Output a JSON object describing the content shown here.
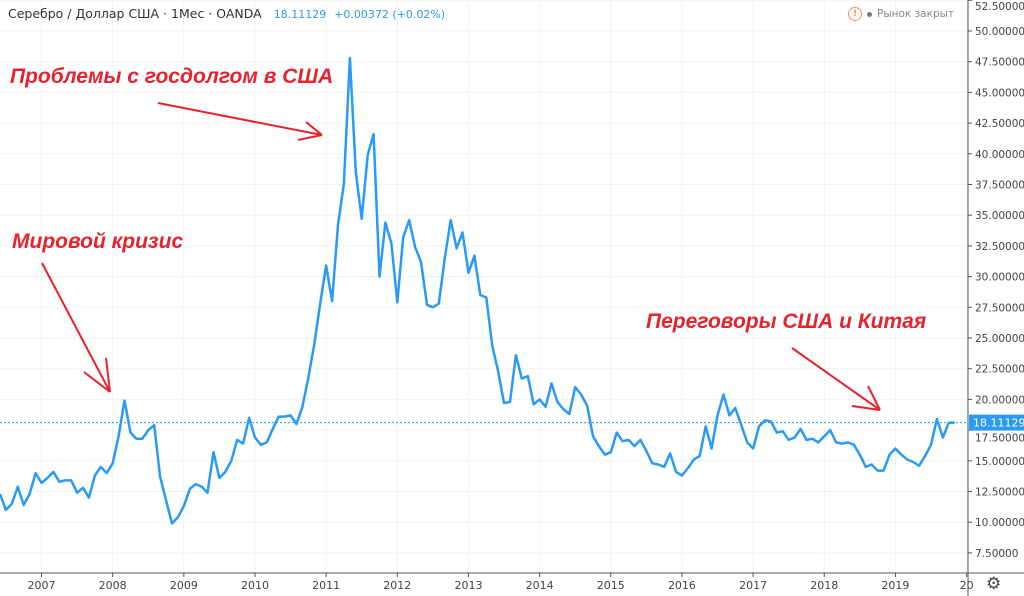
{
  "header": {
    "symbol": "Серебро / Доллар США · 1Мес · OANDA",
    "last": "18.11129",
    "change": "+0.00372 (+0.02%)",
    "market_status": "Рынок закрыт"
  },
  "colors": {
    "line": "#2b9af3",
    "annotation": "#e5232d",
    "grid": "#eef3f8"
  },
  "chart_data": {
    "type": "line",
    "title": "Серебро / Доллар США · 1Мес · OANDA",
    "x_start": "2006-06",
    "x_step": "1 month",
    "xlabel": "",
    "ylabel": "",
    "ylim": [
      6,
      52.5
    ],
    "x_ticks": [
      "2007",
      "2008",
      "2009",
      "2010",
      "2011",
      "2012",
      "2013",
      "2014",
      "2015",
      "2016",
      "2017",
      "2018",
      "2019",
      "20"
    ],
    "y_ticks": [
      "7.50000",
      "10.00000",
      "12.50000",
      "15.00000",
      "17.50000",
      "20.00000",
      "22.50000",
      "25.00000",
      "27.50000",
      "30.00000",
      "32.50000",
      "35.00000",
      "37.50000",
      "40.00000",
      "42.50000",
      "45.00000",
      "47.50000",
      "50.00000",
      "52.50000"
    ],
    "last_price_label": "18.11129",
    "values": [
      12.3,
      11.0,
      11.5,
      12.9,
      11.4,
      12.3,
      14.0,
      13.2,
      13.6,
      14.1,
      13.3,
      13.4,
      13.4,
      12.4,
      12.8,
      12.0,
      13.8,
      14.5,
      14.0,
      14.8,
      17.0,
      19.9,
      17.3,
      16.8,
      16.8,
      17.5,
      17.9,
      13.7,
      11.8,
      9.9,
      10.4,
      11.3,
      12.7,
      13.1,
      12.9,
      12.4,
      15.7,
      13.6,
      14.1,
      15.0,
      16.7,
      16.4,
      18.5,
      16.9,
      16.3,
      16.5,
      17.6,
      18.6,
      18.6,
      18.7,
      18.0,
      19.4,
      21.8,
      24.5,
      27.8,
      30.9,
      28.0,
      34.2,
      37.6,
      47.8,
      38.5,
      34.7,
      39.9,
      41.6,
      30.0,
      34.4,
      32.7,
      27.9,
      33.2,
      34.6,
      32.4,
      31.2,
      27.7,
      27.5,
      27.8,
      31.5,
      34.6,
      32.3,
      33.6,
      30.3,
      31.7,
      28.5,
      28.3,
      24.4,
      22.3,
      19.7,
      19.8,
      23.6,
      21.7,
      21.9,
      19.6,
      20.0,
      19.4,
      21.3,
      19.8,
      19.2,
      18.8,
      21.0,
      20.4,
      19.5,
      17.0,
      16.2,
      15.5,
      15.7,
      17.3,
      16.6,
      16.7,
      16.2,
      16.7,
      15.8,
      14.8,
      14.7,
      14.5,
      15.6,
      14.1,
      13.8,
      14.4,
      15.1,
      15.4,
      17.8,
      16.0,
      18.7,
      20.4,
      18.7,
      19.3,
      17.9,
      16.5,
      16.0,
      17.8,
      18.3,
      18.2,
      17.3,
      17.4,
      16.7,
      16.9,
      17.6,
      16.7,
      16.8,
      16.5,
      17.0,
      17.5,
      16.5,
      16.4,
      16.5,
      16.3,
      15.5,
      14.5,
      14.7,
      14.2,
      14.2,
      15.5,
      16.0,
      15.5,
      15.1,
      14.9,
      14.6,
      15.4,
      16.3,
      18.4,
      16.9,
      18.1,
      18.11
    ],
    "annotations": [
      "Проблемы с госдолгом в США",
      "Мировой кризис",
      "Переговоры США и Китая"
    ]
  }
}
